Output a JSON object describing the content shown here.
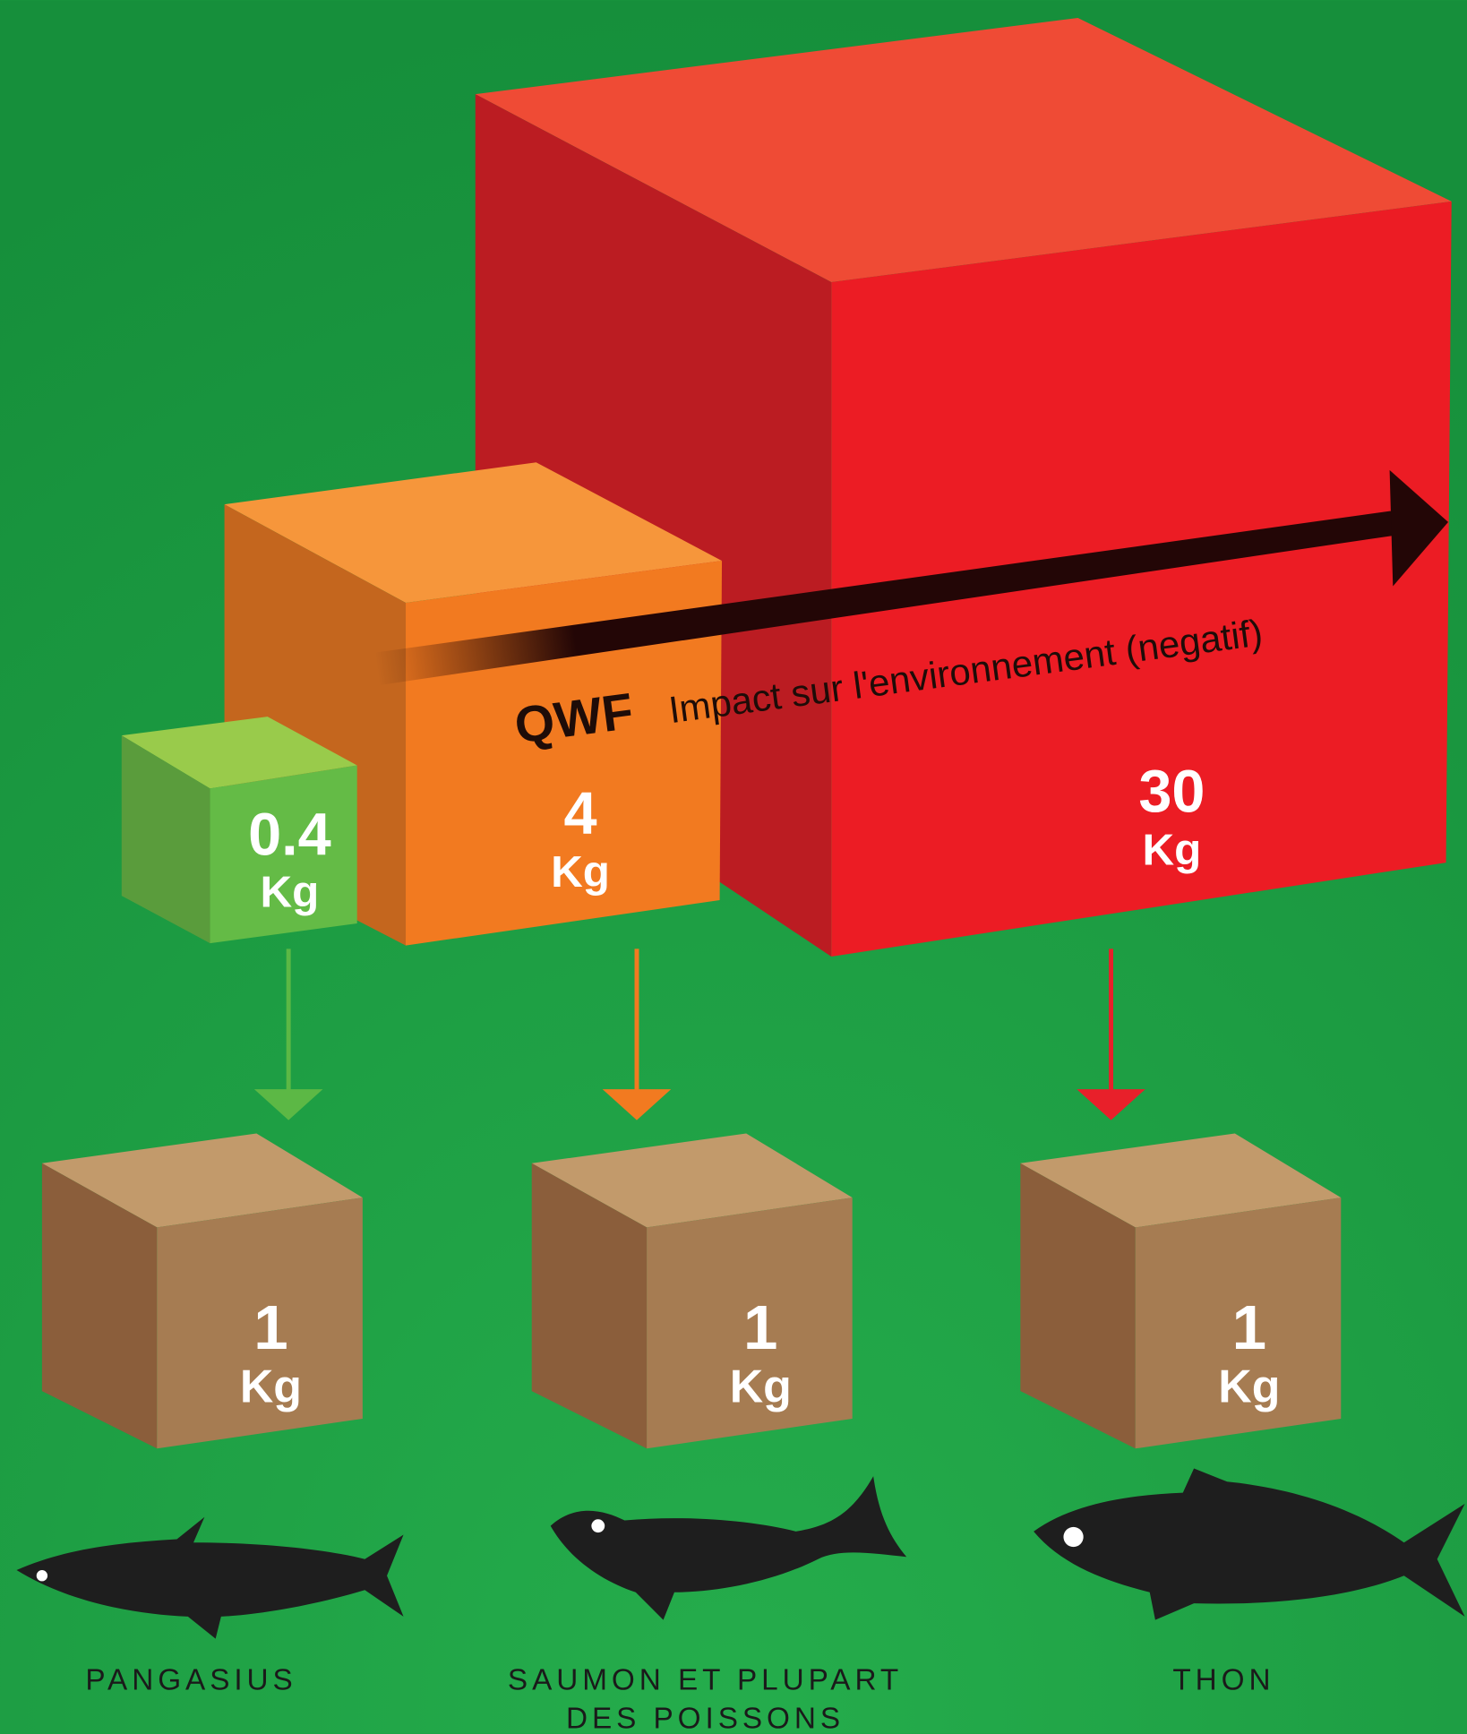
{
  "title": {
    "acronym": "QWF",
    "text": "Impact sur l'environnement (negatif)"
  },
  "impacts": [
    {
      "value": 0.4,
      "unit": "Kg"
    },
    {
      "value": 4,
      "unit": "Kg"
    },
    {
      "value": 30,
      "unit": "Kg"
    }
  ],
  "products": [
    {
      "value": 1,
      "unit": "Kg",
      "label_lines": [
        "PANGASIUS"
      ]
    },
    {
      "value": 1,
      "unit": "Kg",
      "label_lines": [
        "SAUMON ET PLUPART",
        "DES POISSONS"
      ]
    },
    {
      "value": 1,
      "unit": "Kg",
      "label_lines": [
        "THON"
      ]
    }
  ]
}
